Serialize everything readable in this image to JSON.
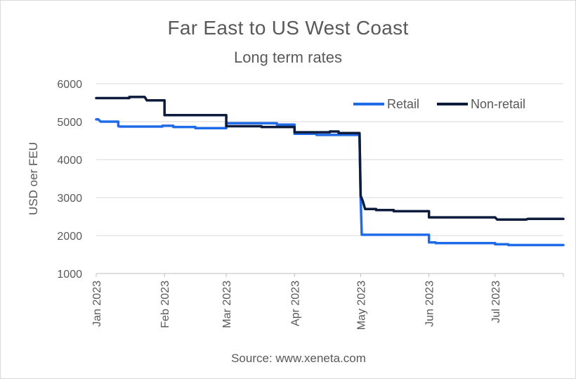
{
  "chart_data": {
    "type": "line",
    "title": "Far East to US West Coast",
    "subtitle": "Long term rates",
    "ylabel": "USD oer FEU",
    "xlabel": "",
    "source": "Source: www.xeneta.com",
    "ylim": [
      1000,
      6000
    ],
    "yticks": [
      1000,
      2000,
      3000,
      4000,
      5000,
      6000
    ],
    "x_range_days": [
      0,
      212
    ],
    "xticks": [
      {
        "label": "Jan 2023",
        "day": 0
      },
      {
        "label": "Feb 2023",
        "day": 31
      },
      {
        "label": "Mar 2023",
        "day": 59
      },
      {
        "label": "Apr 2023",
        "day": 90
      },
      {
        "label": "May 2023",
        "day": 120
      },
      {
        "label": "Jun 2023",
        "day": 151
      },
      {
        "label": "Jul 2023",
        "day": 181
      }
    ],
    "grid": "horizontal",
    "legend_position": "top-right",
    "series": [
      {
        "name": "Retail",
        "color": "#1f6be8",
        "points": [
          [
            0,
            5060
          ],
          [
            1,
            5060
          ],
          [
            2,
            5000
          ],
          [
            10,
            5000
          ],
          [
            10,
            4880
          ],
          [
            11,
            4870
          ],
          [
            30,
            4870
          ],
          [
            30,
            4890
          ],
          [
            35,
            4890
          ],
          [
            35,
            4860
          ],
          [
            45,
            4860
          ],
          [
            45,
            4830
          ],
          [
            59,
            4830
          ],
          [
            59,
            4960
          ],
          [
            82,
            4960
          ],
          [
            82,
            4920
          ],
          [
            90,
            4920
          ],
          [
            90,
            4680
          ],
          [
            100,
            4680
          ],
          [
            100,
            4650
          ],
          [
            119.5,
            4650
          ],
          [
            120,
            3000
          ],
          [
            120.5,
            2020
          ],
          [
            151,
            2020
          ],
          [
            151,
            1820
          ],
          [
            154,
            1820
          ],
          [
            154,
            1800
          ],
          [
            181,
            1800
          ],
          [
            181,
            1770
          ],
          [
            187,
            1770
          ],
          [
            187,
            1750
          ],
          [
            212,
            1750
          ]
        ]
      },
      {
        "name": "Non-retail",
        "color": "#0d1b3d",
        "points": [
          [
            0,
            5620
          ],
          [
            15,
            5620
          ],
          [
            15,
            5650
          ],
          [
            22,
            5650
          ],
          [
            23,
            5560
          ],
          [
            31,
            5560
          ],
          [
            31,
            5170
          ],
          [
            59,
            5170
          ],
          [
            59,
            4880
          ],
          [
            75,
            4880
          ],
          [
            75,
            4860
          ],
          [
            90,
            4860
          ],
          [
            90,
            4720
          ],
          [
            106,
            4720
          ],
          [
            106,
            4740
          ],
          [
            110,
            4740
          ],
          [
            110,
            4700
          ],
          [
            119.5,
            4700
          ],
          [
            120,
            3050
          ],
          [
            121,
            2900
          ],
          [
            122,
            2700
          ],
          [
            127,
            2700
          ],
          [
            127,
            2670
          ],
          [
            135,
            2670
          ],
          [
            135,
            2640
          ],
          [
            151,
            2640
          ],
          [
            151,
            2480
          ],
          [
            181,
            2480
          ],
          [
            182,
            2420
          ],
          [
            195,
            2420
          ],
          [
            196,
            2440
          ],
          [
            212,
            2440
          ]
        ]
      }
    ]
  }
}
